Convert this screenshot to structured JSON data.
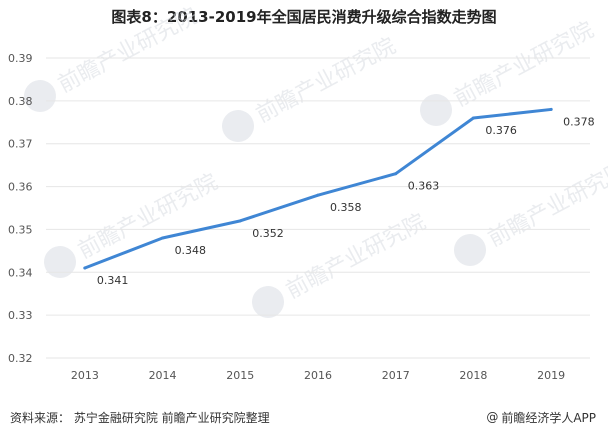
{
  "title": "图表8：2013-2019年全国居民消费升级综合指数走势图",
  "footer": {
    "source": "资料来源：  苏宁金融研究院 前瞻产业研究院整理",
    "brand": "前瞻经济学人APP"
  },
  "colors": {
    "line": "#3f86d4",
    "grid": "#e6e6e6",
    "axis_text": "#555555"
  },
  "watermark_text": "前瞻产业研究院",
  "chart_data": {
    "type": "line",
    "title": "图表8：2013-2019年全国居民消费升级综合指数走势图",
    "xlabel": "",
    "ylabel": "",
    "categories": [
      "2013",
      "2014",
      "2015",
      "2016",
      "2017",
      "2018",
      "2019"
    ],
    "series": [
      {
        "values": [
          0.341,
          0.348,
          0.352,
          0.358,
          0.363,
          0.376,
          0.378
        ]
      }
    ],
    "data_labels": [
      "0.341",
      "0.348",
      "0.352",
      "0.358",
      "0.363",
      "0.376",
      "0.378"
    ],
    "y_ticks": [
      "0.32",
      "0.33",
      "0.34",
      "0.35",
      "0.36",
      "0.37",
      "0.38",
      "0.39"
    ],
    "ylim": [
      0.32,
      0.39
    ],
    "grid": true,
    "legend": "none"
  }
}
